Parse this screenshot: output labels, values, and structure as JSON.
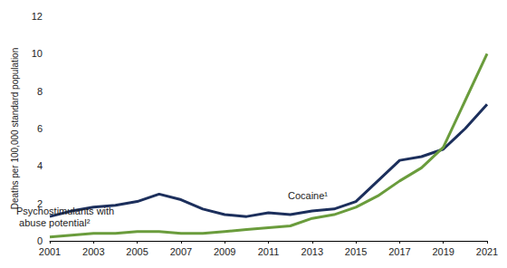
{
  "chart_data": {
    "type": "line",
    "ylabel": "Deaths per 100,000 standard population",
    "x": [
      2001,
      2002,
      2003,
      2004,
      2005,
      2006,
      2007,
      2008,
      2009,
      2010,
      2011,
      2012,
      2013,
      2014,
      2015,
      2016,
      2017,
      2018,
      2019,
      2020,
      2021
    ],
    "series": [
      {
        "name": "Cocaine¹",
        "color": "#1c2f5c",
        "values": [
          1.3,
          1.6,
          1.8,
          1.9,
          2.1,
          2.5,
          2.2,
          1.7,
          1.4,
          1.3,
          1.5,
          1.4,
          1.6,
          1.7,
          2.1,
          3.2,
          4.3,
          4.5,
          4.9,
          6.0,
          7.3
        ]
      },
      {
        "name": "Psychostimulants with abuse potential²",
        "color": "#6a9c3c",
        "values": [
          0.2,
          0.3,
          0.4,
          0.4,
          0.5,
          0.5,
          0.4,
          0.4,
          0.5,
          0.6,
          0.7,
          0.8,
          1.2,
          1.4,
          1.8,
          2.4,
          3.2,
          3.9,
          5.0,
          7.5,
          10.0
        ]
      }
    ],
    "xlim": [
      2001,
      2021
    ],
    "xticks": [
      2001,
      2003,
      2005,
      2007,
      2009,
      2011,
      2013,
      2015,
      2017,
      2019,
      2021
    ],
    "ylim": [
      0,
      12
    ],
    "yticks": [
      0,
      2,
      4,
      6,
      8,
      10,
      12
    ],
    "grid": false
  }
}
